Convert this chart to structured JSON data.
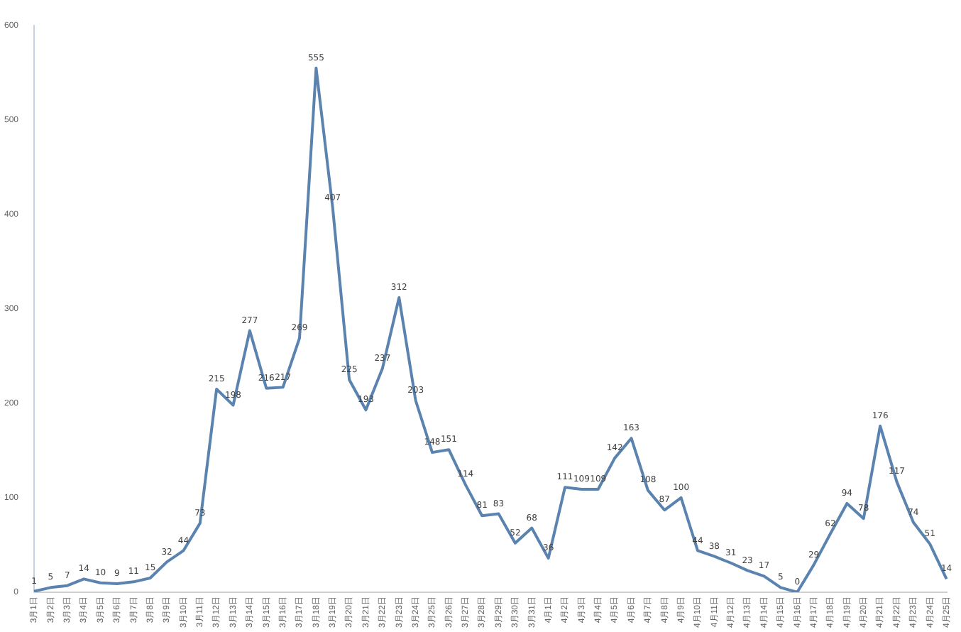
{
  "chart_data": {
    "type": "line",
    "categories": [
      "3月1日",
      "3月2日",
      "3月3日",
      "3月4日",
      "3月5日",
      "3月6日",
      "3月7日",
      "3月8日",
      "3月9日",
      "3月10日",
      "3月11日",
      "3月12日",
      "3月13日",
      "3月14日",
      "3月15日",
      "3月16日",
      "3月17日",
      "3月18日",
      "3月19日",
      "3月20日",
      "3月21日",
      "3月22日",
      "3月23日",
      "3月24日",
      "3月25日",
      "3月26日",
      "3月27日",
      "3月28日",
      "3月29日",
      "3月30日",
      "3月31日",
      "4月1日",
      "4月2日",
      "4月3日",
      "4月4日",
      "4月5日",
      "4月6日",
      "4月7日",
      "4月8日",
      "4月9日",
      "4月10日",
      "4月11日",
      "4月12日",
      "4月13日",
      "4月14日",
      "4月15日",
      "4月16日",
      "4月17日",
      "4月18日",
      "4月19日",
      "4月20日",
      "4月21日",
      "4月22日",
      "4月23日",
      "4月24日",
      "4月25日"
    ],
    "series": [
      {
        "color": "#5b83b0",
        "values": [
          1,
          5,
          7,
          14,
          10,
          9,
          11,
          15,
          32,
          44,
          73,
          215,
          198,
          277,
          216,
          217,
          269,
          555,
          407,
          225,
          193,
          237,
          312,
          203,
          148,
          151,
          114,
          81,
          83,
          52,
          68,
          36,
          111,
          109,
          109,
          142,
          163,
          108,
          87,
          100,
          44,
          38,
          31,
          23,
          17,
          5,
          0,
          29,
          62,
          94,
          78,
          176,
          117,
          74,
          51,
          14
        ]
      }
    ],
    "ylim": [
      0,
      600
    ],
    "yticks": [
      0,
      100,
      200,
      300,
      400,
      500,
      600
    ],
    "grid": false,
    "legend": false,
    "marker": "none",
    "line_style": "solid",
    "data_labels": true
  }
}
